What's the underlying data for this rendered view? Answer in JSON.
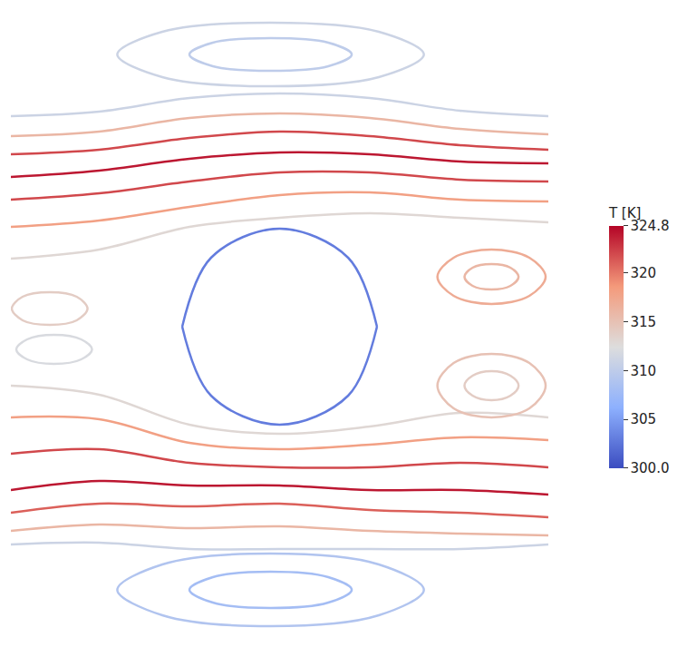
{
  "chart_data": {
    "type": "streamline",
    "xlim": [
      12,
      608
    ],
    "ylim": [
      5,
      710
    ],
    "grid": false,
    "tick_labels": false,
    "colorbar": {
      "title": "T [K]",
      "range": [
        300,
        324.8
      ],
      "ticks": [
        {
          "value": 300,
          "label": "300.0"
        },
        305,
        310,
        315,
        320,
        324.8
      ]
    },
    "streamlines": [
      {
        "x": [
          12,
          110,
          210,
          310,
          410,
          510,
          608
        ],
        "y": [
          592,
          597,
          612,
          617,
          612,
          598,
          592
        ],
        "T": 311
      },
      {
        "x": [
          12,
          110,
          210,
          310,
          410,
          510,
          608
        ],
        "y": [
          570,
          575,
          590,
          595,
          590,
          578,
          572
        ],
        "T": 316
      },
      {
        "x": [
          12,
          110,
          210,
          310,
          410,
          510,
          608
        ],
        "y": [
          550,
          555,
          568,
          575,
          570,
          560,
          555
        ],
        "T": 322
      },
      {
        "x": [
          12,
          110,
          210,
          310,
          410,
          510,
          608
        ],
        "y": [
          525,
          532,
          545,
          552,
          550,
          542,
          540
        ],
        "T": 324
      },
      {
        "x": [
          12,
          110,
          210,
          310,
          410,
          510,
          608
        ],
        "y": [
          500,
          507,
          520,
          530,
          530,
          522,
          520
        ],
        "T": 322
      },
      {
        "x": [
          12,
          110,
          210,
          310,
          410,
          510,
          608
        ],
        "y": [
          470,
          477,
          492,
          505,
          508,
          500,
          498
        ],
        "T": 318
      },
      {
        "x": [
          12,
          110,
          210,
          310,
          410,
          510,
          608
        ],
        "y": [
          435,
          445,
          470,
          480,
          485,
          480,
          475
        ],
        "T": 313
      },
      {
        "x": [
          12,
          110,
          210,
          310,
          410,
          510,
          608
        ],
        "y": [
          295,
          285,
          252,
          242,
          250,
          265,
          260
        ],
        "T": 313
      },
      {
        "x": [
          12,
          110,
          210,
          310,
          410,
          510,
          608
        ],
        "y": [
          260,
          258,
          232,
          225,
          230,
          238,
          235
        ],
        "T": 318
      },
      {
        "x": [
          12,
          110,
          210,
          310,
          410,
          510,
          608
        ],
        "y": [
          220,
          225,
          210,
          205,
          205,
          210,
          205
        ],
        "T": 322
      },
      {
        "x": [
          12,
          110,
          210,
          310,
          410,
          510,
          608
        ],
        "y": [
          180,
          190,
          185,
          185,
          180,
          180,
          175
        ],
        "T": 324
      },
      {
        "x": [
          12,
          110,
          210,
          310,
          410,
          510,
          608
        ],
        "y": [
          155,
          165,
          162,
          165,
          158,
          155,
          150
        ],
        "T": 321
      },
      {
        "x": [
          12,
          110,
          210,
          310,
          410,
          510,
          608
        ],
        "y": [
          135,
          142,
          138,
          140,
          135,
          132,
          130
        ],
        "T": 316
      },
      {
        "x": [
          12,
          110,
          210,
          310,
          410,
          510,
          608
        ],
        "y": [
          120,
          122,
          115,
          115,
          115,
          115,
          120
        ],
        "T": 311
      },
      {
        "x": [
          470,
          420,
          300,
          180,
          130,
          180,
          300,
          420,
          470
        ],
        "y": [
          660,
          685,
          695,
          685,
          660,
          635,
          625,
          635,
          660
        ],
        "T": 311
      },
      {
        "x": [
          390,
          364,
          300,
          236,
          210,
          236,
          300,
          364,
          390
        ],
        "y": [
          660,
          673,
          678,
          673,
          660,
          647,
          642,
          647,
          660
        ],
        "T": 310
      },
      {
        "x": [
          470,
          420,
          300,
          180,
          130,
          180,
          300,
          420,
          470
        ],
        "y": [
          70,
          98,
          110,
          98,
          70,
          42,
          30,
          42,
          70
        ],
        "T": 309
      },
      {
        "x": [
          390,
          364,
          300,
          236,
          210,
          236,
          300,
          364,
          390
        ],
        "y": [
          70,
          84,
          90,
          84,
          70,
          56,
          50,
          56,
          70
        ],
        "T": 308
      },
      {
        "x": [
          605,
          587,
          545,
          503,
          485,
          503,
          545,
          587,
          605
        ],
        "y": [
          415,
          436,
          445,
          436,
          415,
          394,
          385,
          394,
          415
        ],
        "T": 317
      },
      {
        "x": [
          575,
          566,
          545,
          524,
          515,
          524,
          545,
          566,
          575
        ],
        "y": [
          415,
          425,
          429,
          425,
          415,
          405,
          401,
          405,
          415
        ],
        "T": 316
      },
      {
        "x": [
          605,
          587,
          545,
          503,
          485,
          503,
          545,
          587,
          605
        ],
        "y": [
          295,
          320,
          330,
          320,
          295,
          270,
          260,
          270,
          295
        ],
        "T": 315
      },
      {
        "x": [
          575,
          566,
          545,
          524,
          515,
          524,
          545,
          566,
          575
        ],
        "y": [
          295,
          306,
          311,
          306,
          295,
          284,
          279,
          284,
          295
        ],
        "T": 314
      },
      {
        "x": [
          97,
          85,
          55,
          25,
          13,
          25,
          55,
          85,
          97
        ],
        "y": [
          380,
          393,
          398,
          393,
          380,
          367,
          362,
          367,
          380
        ],
        "T": 314
      },
      {
        "x": [
          102,
          90,
          60,
          30,
          18,
          30,
          60,
          90,
          102
        ],
        "y": [
          335,
          346,
          351,
          346,
          335,
          324,
          319,
          324,
          335
        ],
        "T": 312
      },
      {
        "x": [
          202,
          234,
          310,
          386,
          418
        ],
        "y": [
          360,
          436,
          468,
          436,
          360
        ],
        "T": 303
      },
      {
        "x": [
          202,
          234,
          310,
          386,
          418
        ],
        "y": [
          360,
          284,
          252,
          284,
          360
        ],
        "T": 303
      }
    ]
  }
}
